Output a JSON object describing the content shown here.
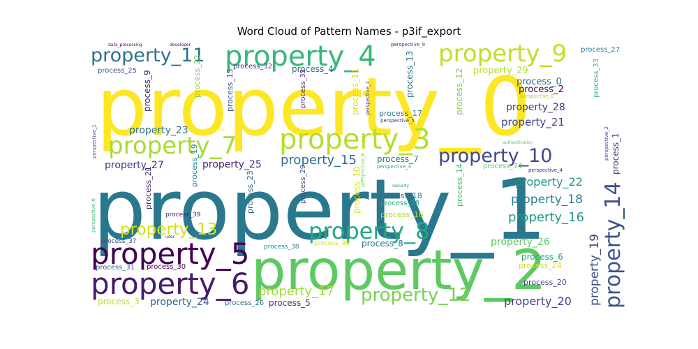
{
  "chart_data": {
    "type": "wordcloud",
    "title": "Word Cloud of Pattern Names - p3if_export",
    "palette": "viridis",
    "words": [
      {
        "text": "property_0",
        "weight": 100,
        "color": "#fde725"
      },
      {
        "text": "property_1",
        "weight": 97,
        "color": "#2a788e"
      },
      {
        "text": "property_2",
        "weight": 72,
        "color": "#5ec962"
      },
      {
        "text": "property_4",
        "weight": 47,
        "color": "#35b779"
      },
      {
        "text": "property_3",
        "weight": 45,
        "color": "#b5de2b"
      },
      {
        "text": "property_5",
        "weight": 39,
        "color": "#440154"
      },
      {
        "text": "property_6",
        "weight": 39,
        "color": "#481a6c"
      },
      {
        "text": "property_9",
        "weight": 36,
        "color": "#c2df23"
      },
      {
        "text": "property_7",
        "weight": 35,
        "color": "#a8db34"
      },
      {
        "text": "property_8",
        "weight": 34,
        "color": "#22a884"
      },
      {
        "text": "property_14",
        "weight": 30,
        "color": "#3b528b"
      },
      {
        "text": "property_10",
        "weight": 28,
        "color": "#3e4989"
      },
      {
        "text": "property_11",
        "weight": 28,
        "color": "#2c728e"
      },
      {
        "text": "property_12",
        "weight": 26,
        "color": "#7ad151"
      },
      {
        "text": "property_13",
        "weight": 24,
        "color": "#d2e21b"
      },
      {
        "text": "property_17",
        "weight": 20,
        "color": "#a5db36"
      },
      {
        "text": "property_16",
        "weight": 20,
        "color": "#1f988b"
      },
      {
        "text": "property_15",
        "weight": 19,
        "color": "#2e6e8e"
      },
      {
        "text": "property_19",
        "weight": 18,
        "color": "#3e4a89"
      },
      {
        "text": "property_18",
        "weight": 17,
        "color": "#26828e"
      },
      {
        "text": "property_20",
        "weight": 17,
        "color": "#433e85"
      },
      {
        "text": "property_22",
        "weight": 16,
        "color": "#21918c"
      },
      {
        "text": "property_21",
        "weight": 15,
        "color": "#3f4788"
      },
      {
        "text": "property_24",
        "weight": 14,
        "color": "#355f8d"
      },
      {
        "text": "property_27",
        "weight": 14,
        "color": "#46327e"
      },
      {
        "text": "property_23",
        "weight": 14,
        "color": "#2c728e"
      },
      {
        "text": "property_25",
        "weight": 14,
        "color": "#482374"
      },
      {
        "text": "property_26",
        "weight": 14,
        "color": "#5ec962"
      },
      {
        "text": "property_28",
        "weight": 14,
        "color": "#453781"
      },
      {
        "text": "property_29",
        "weight": 13,
        "color": "#b5de2b"
      },
      {
        "text": "process_0",
        "weight": 13,
        "color": "#33638d"
      },
      {
        "text": "process_1",
        "weight": 12,
        "color": "#482878"
      },
      {
        "text": "process_2",
        "weight": 13,
        "color": "#440154"
      },
      {
        "text": "process_3",
        "weight": 12,
        "color": "#b5de2b"
      },
      {
        "text": "process_4",
        "weight": 12,
        "color": "#2c728e"
      },
      {
        "text": "process_5",
        "weight": 12,
        "color": "#472c7a"
      },
      {
        "text": "process_6",
        "weight": 12,
        "color": "#22a884"
      },
      {
        "text": "process_7",
        "weight": 12,
        "color": "#2a788e"
      },
      {
        "text": "process_8",
        "weight": 12,
        "color": "#2c728e"
      },
      {
        "text": "process_9",
        "weight": 12,
        "color": "#481a6c"
      },
      {
        "text": "process_10",
        "weight": 12,
        "color": "#d8e219"
      },
      {
        "text": "process_11",
        "weight": 12,
        "color": "#d8e219"
      },
      {
        "text": "process_12",
        "weight": 12,
        "color": "#7ad151"
      },
      {
        "text": "process_13",
        "weight": 12,
        "color": "#2c728e"
      },
      {
        "text": "process_14",
        "weight": 11,
        "color": "#44bf70"
      },
      {
        "text": "process_15",
        "weight": 11,
        "color": "#3b528b"
      },
      {
        "text": "process_16",
        "weight": 11,
        "color": "#a5db36"
      },
      {
        "text": "process_17",
        "weight": 11,
        "color": "#2a788e"
      },
      {
        "text": "process_18",
        "weight": 11,
        "color": "#2e6e8e"
      },
      {
        "text": "process_19",
        "weight": 11,
        "color": "#25858e"
      },
      {
        "text": "process_20",
        "weight": 11,
        "color": "#414487"
      },
      {
        "text": "process_21",
        "weight": 11,
        "color": "#482878"
      },
      {
        "text": "process_22",
        "weight": 11,
        "color": "#7ad151"
      },
      {
        "text": "process_23",
        "weight": 11,
        "color": "#31688e"
      },
      {
        "text": "process_24",
        "weight": 11,
        "color": "#d2e21b"
      },
      {
        "text": "process_25",
        "weight": 10,
        "color": "#3b528b"
      },
      {
        "text": "process_26",
        "weight": 10,
        "color": "#2e6e8e"
      },
      {
        "text": "process_27",
        "weight": 10,
        "color": "#2a788e"
      },
      {
        "text": "process_28",
        "weight": 10,
        "color": "#22a884"
      },
      {
        "text": "process_29",
        "weight": 10,
        "color": "#3e4a89"
      },
      {
        "text": "process_30",
        "weight": 10,
        "color": "#440154"
      },
      {
        "text": "process_31",
        "weight": 10,
        "color": "#355f8d"
      },
      {
        "text": "process_32",
        "weight": 10,
        "color": "#46327e"
      },
      {
        "text": "process_33",
        "weight": 10,
        "color": "#2db27d"
      },
      {
        "text": "process_34",
        "weight": 10,
        "color": "#5ec962"
      },
      {
        "text": "process_35",
        "weight": 10,
        "color": "#472d7b"
      },
      {
        "text": "process_36",
        "weight": 9,
        "color": "#d8e219"
      },
      {
        "text": "process_37",
        "weight": 9,
        "color": "#3e4a89"
      },
      {
        "text": "process_38",
        "weight": 9,
        "color": "#26828e"
      },
      {
        "text": "process_39",
        "weight": 9,
        "color": "#482475"
      },
      {
        "text": "perspective_0",
        "weight": 7,
        "color": "#a0da39"
      },
      {
        "text": "perspective_1",
        "weight": 7,
        "color": "#3b528b"
      },
      {
        "text": "perspective_2",
        "weight": 7,
        "color": "#453882"
      },
      {
        "text": "perspective_3",
        "weight": 7,
        "color": "#22a884"
      },
      {
        "text": "perspective_4",
        "weight": 7,
        "color": "#482475"
      },
      {
        "text": "perspective_5",
        "weight": 7,
        "color": "#472d7b"
      },
      {
        "text": "perspective_6",
        "weight": 7,
        "color": "#35b779"
      },
      {
        "text": "perspective_7",
        "weight": 7,
        "color": "#433e85"
      },
      {
        "text": "perspective_8",
        "weight": 7,
        "color": "#75d054"
      },
      {
        "text": "perspective_9",
        "weight": 7,
        "color": "#472c7a"
      },
      {
        "text": "authentication",
        "weight": 6,
        "color": "#5ec962"
      },
      {
        "text": "scalability",
        "weight": 6,
        "color": "#fde725"
      },
      {
        "text": "security",
        "weight": 6,
        "color": "#21918c"
      },
      {
        "text": "data_processing",
        "weight": 6,
        "color": "#440154"
      },
      {
        "text": "developer",
        "weight": 6,
        "color": "#440154"
      },
      {
        "text": "user",
        "weight": 6,
        "color": "#433e85"
      }
    ]
  }
}
